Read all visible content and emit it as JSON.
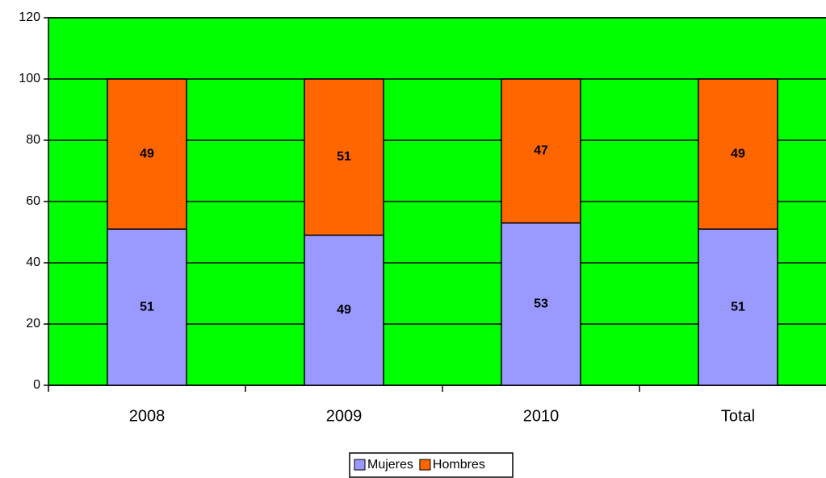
{
  "chart_data": {
    "type": "bar",
    "stacked": true,
    "categories": [
      "2008",
      "2009",
      "2010",
      "Total"
    ],
    "series": [
      {
        "name": "Mujeres",
        "color": "#9999ff",
        "values": [
          51,
          49,
          53,
          51
        ]
      },
      {
        "name": "Hombres",
        "color": "#ff6600",
        "values": [
          49,
          51,
          47,
          49
        ]
      }
    ],
    "ylim": [
      0,
      120
    ],
    "yticks": [
      0,
      20,
      40,
      60,
      80,
      100,
      120
    ],
    "grid": true,
    "plot_color": "#00ff00",
    "legend": "bottom"
  }
}
